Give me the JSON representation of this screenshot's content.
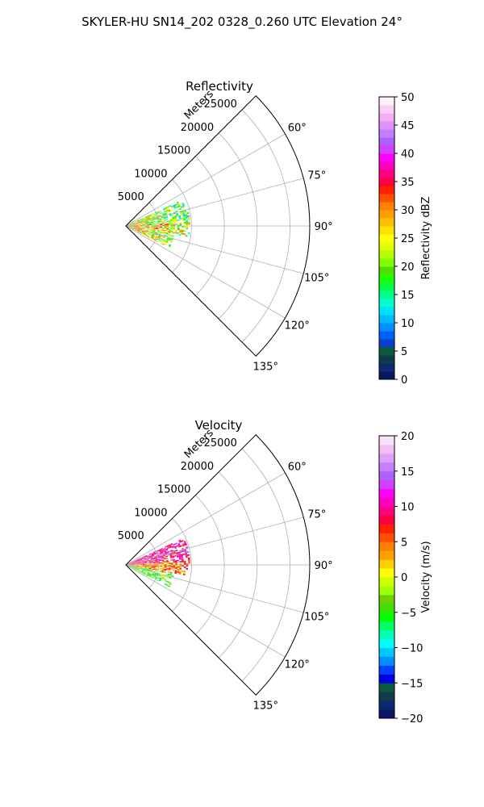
{
  "suptitle": "SKYLER-HU  SN14_202  0328_0.260 UTC Elevation 24°",
  "chart_data": [
    {
      "type": "heatmap",
      "subtype": "polar-sector-radar",
      "title": "Reflectivity",
      "radial_label": "Meters",
      "azimuth_range_deg": [
        45,
        135
      ],
      "range_max_m": 28000,
      "range_ticks": [
        5000,
        10000,
        15000,
        20000,
        25000
      ],
      "range_tick_labels": [
        "5000",
        "10000",
        "15000",
        "20000",
        "25000"
      ],
      "azimuth_ticks_deg": [
        60,
        75,
        90,
        105,
        120,
        135
      ],
      "azimuth_tick_labels": [
        "60°",
        "75°",
        "90°",
        "105°",
        "120°",
        "135°"
      ],
      "grid": true,
      "colorbar": {
        "label": "Reflectivity dBZ",
        "range": [
          0,
          50
        ],
        "ticks": [
          0,
          5,
          10,
          15,
          20,
          25,
          30,
          35,
          40,
          45,
          50
        ],
        "tick_labels": [
          "0",
          "5",
          "10",
          "15",
          "20",
          "25",
          "30",
          "35",
          "40",
          "45",
          "50"
        ],
        "colors": [
          "#0c1466",
          "#0a2a6e",
          "#123a4a",
          "#0b5a3a",
          "#0a3fc8",
          "#0060ff",
          "#0090ff",
          "#00b8ff",
          "#00e0ff",
          "#00ffd0",
          "#00ff90",
          "#00ff40",
          "#20ff00",
          "#50e000",
          "#80ff00",
          "#b0ff00",
          "#e0ff00",
          "#ffff00",
          "#ffe000",
          "#ffc000",
          "#ffa000",
          "#ff8000",
          "#ff5000",
          "#ff2000",
          "#ff0040",
          "#ff0080",
          "#ff00c0",
          "#ff00ff",
          "#d040ff",
          "#b060ff",
          "#c080ff",
          "#e090ff",
          "#f0b0f0",
          "#fad0f5",
          "#fff0ff"
        ]
      },
      "echo_regions": [
        {
          "az_range_deg": [
            65,
            86
          ],
          "range_m": [
            0,
            9500
          ],
          "mean_value": 18
        },
        {
          "az_range_deg": [
            86,
            100
          ],
          "range_m": [
            0,
            9500
          ],
          "mean_value": 22
        },
        {
          "az_range_deg": [
            100,
            116
          ],
          "range_m": [
            0,
            7500
          ],
          "mean_value": 20
        }
      ]
    },
    {
      "type": "heatmap",
      "subtype": "polar-sector-radar",
      "title": "Velocity",
      "radial_label": "Meters",
      "azimuth_range_deg": [
        45,
        135
      ],
      "range_max_m": 28000,
      "range_ticks": [
        5000,
        10000,
        15000,
        20000,
        25000
      ],
      "range_tick_labels": [
        "5000",
        "10000",
        "15000",
        "20000",
        "25000"
      ],
      "azimuth_ticks_deg": [
        60,
        75,
        90,
        105,
        120,
        135
      ],
      "azimuth_tick_labels": [
        "60°",
        "75°",
        "90°",
        "105°",
        "120°",
        "135°"
      ],
      "grid": true,
      "colorbar": {
        "label": "Velocity (m/s)",
        "range": [
          -20,
          20
        ],
        "ticks": [
          -20,
          -15,
          -10,
          -5,
          0,
          5,
          10,
          15,
          20
        ],
        "tick_labels": [
          "−20",
          "−15",
          "−10",
          "−5",
          "0",
          "5",
          "10",
          "15",
          "20"
        ],
        "colors": [
          "#0c1466",
          "#0a2a6e",
          "#123a4a",
          "#0b5a3a",
          "#0000e0",
          "#0040ff",
          "#0090ff",
          "#00c8ff",
          "#00ffff",
          "#00ffb0",
          "#00ff60",
          "#00ff00",
          "#40e000",
          "#70d000",
          "#a0ff00",
          "#d0ff00",
          "#ffff00",
          "#ffd000",
          "#ffa000",
          "#ff8000",
          "#ff5000",
          "#ff2000",
          "#ff0040",
          "#ff0080",
          "#ff00c0",
          "#ff00ff",
          "#d040ff",
          "#b060ff",
          "#c080ff",
          "#e0a0ff",
          "#f0c0f0",
          "#fae0fa"
        ]
      },
      "echo_regions": [
        {
          "az_range_deg": [
            65,
            86
          ],
          "range_m": [
            0,
            9500
          ],
          "mean_value": 10
        },
        {
          "az_range_deg": [
            86,
            100
          ],
          "range_m": [
            0,
            9500
          ],
          "mean_value": 4
        },
        {
          "az_range_deg": [
            100,
            116
          ],
          "range_m": [
            0,
            7500
          ],
          "mean_value": -4
        }
      ]
    }
  ]
}
